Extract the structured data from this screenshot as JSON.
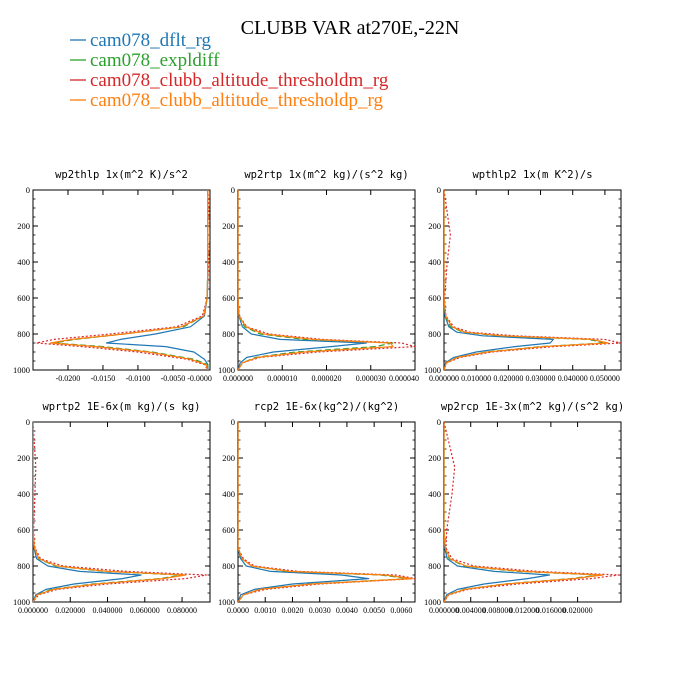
{
  "figure": {
    "title": "CLUBB VAR at270E,-22N",
    "legend": [
      {
        "name": "cam078_dflt_rg",
        "color": "#1f77b4",
        "dash": "solid"
      },
      {
        "name": "cam078_expldiff",
        "color": "#2ca02c",
        "dash": "dashed"
      },
      {
        "name": "cam078_clubb_altitude_thresholdm_rg",
        "color": "#d62728",
        "dash": "dotted"
      },
      {
        "name": "cam078_clubb_altitude_thresholdp_rg",
        "color": "#ff7f0e",
        "dash": "solid"
      }
    ]
  },
  "chart_data": [
    {
      "type": "line",
      "title": "wp2thlp  1x(m^2 K)/s^2",
      "xlim": [
        -0.025,
        0.0003
      ],
      "ylim": [
        1000,
        0
      ],
      "xticks": [
        -0.02,
        -0.015,
        -0.01,
        -0.005,
        0.0
      ],
      "xticklabels": [
        "-0.0200",
        "-0.0150",
        "-0.0100",
        "-0.0050",
        "-0.0000"
      ],
      "yticks": [
        0,
        200,
        400,
        600,
        800,
        1000
      ],
      "y": [
        0,
        250,
        400,
        600,
        700,
        760,
        800,
        830,
        850,
        870,
        900,
        940,
        970,
        1000
      ],
      "series": [
        {
          "name": "cam078_dflt_rg",
          "values": [
            0,
            0,
            0,
            -0.0001,
            -0.0005,
            -0.0025,
            -0.0075,
            -0.0125,
            -0.0145,
            -0.006,
            -0.002,
            -0.0005,
            0,
            0
          ]
        },
        {
          "name": "cam078_expldiff",
          "values": [
            0,
            0,
            0,
            -0.0001,
            -0.0006,
            -0.0035,
            -0.012,
            -0.019,
            -0.022,
            -0.015,
            -0.008,
            -0.002,
            0,
            0
          ]
        },
        {
          "name": "cam078_clubb_altitude_thresholdm_rg",
          "values": [
            0,
            0.0003,
            0.0001,
            -0.0001,
            -0.0008,
            -0.0045,
            -0.014,
            -0.022,
            -0.0245,
            -0.018,
            -0.01,
            -0.003,
            -0.0005,
            0
          ]
        },
        {
          "name": "cam078_clubb_altitude_thresholdp_rg",
          "values": [
            0,
            0,
            0,
            -0.0001,
            -0.0006,
            -0.0038,
            -0.012,
            -0.0195,
            -0.0225,
            -0.016,
            -0.0085,
            -0.0025,
            -0.0003,
            0
          ]
        }
      ]
    },
    {
      "type": "line",
      "title": "wp2rtp  1x(m^2 kg)/(s^2 kg)",
      "xlim": [
        0,
        4e-05
      ],
      "ylim": [
        1000,
        0
      ],
      "xticks": [
        0,
        1e-05,
        2e-05,
        3e-05,
        4e-05
      ],
      "xticklabels": [
        "0.000000",
        "0.000010",
        "0.000020",
        "0.000030",
        "0.000040"
      ],
      "yticks": [
        0,
        200,
        400,
        600,
        800,
        1000
      ],
      "y": [
        0,
        200,
        400,
        600,
        700,
        760,
        800,
        830,
        850,
        870,
        900,
        930,
        960,
        1000
      ],
      "series": [
        {
          "name": "cam078_dflt_rg",
          "values": [
            0,
            0,
            0,
            0,
            2e-07,
            1e-06,
            3e-06,
            9.5e-06,
            2.9e-05,
            2.1e-05,
            8e-06,
            2e-06,
            5e-07,
            0
          ]
        },
        {
          "name": "cam078_expldiff",
          "values": [
            0,
            0,
            0,
            0,
            2e-07,
            1.5e-06,
            5e-06,
            1.5e-05,
            3.5e-05,
            3.1e-05,
            1.3e-05,
            4e-06,
            1e-06,
            0
          ]
        },
        {
          "name": "cam078_clubb_altitude_thresholdm_rg",
          "values": [
            0,
            0,
            0,
            0,
            3e-07,
            2e-06,
            7e-06,
            1.9e-05,
            3.7e-05,
            4e-05,
            1.8e-05,
            5e-06,
            1e-06,
            0
          ]
        },
        {
          "name": "cam078_clubb_altitude_thresholdp_rg",
          "values": [
            0,
            0,
            0,
            0,
            2e-07,
            1.8e-06,
            5.8e-06,
            1.7e-05,
            3.45e-05,
            3.5e-05,
            1.5e-05,
            4.5e-06,
            1e-06,
            0
          ]
        }
      ]
    },
    {
      "type": "line",
      "title": "wpthlp2  1x(m K^2)/s",
      "xlim": [
        0,
        0.055
      ],
      "ylim": [
        1000,
        0
      ],
      "xticks": [
        0,
        0.01,
        0.02,
        0.03,
        0.04,
        0.05
      ],
      "xticklabels": [
        "0.000000",
        "0.010000",
        "0.020000",
        "0.030000",
        "0.040000",
        "0.050000"
      ],
      "yticks": [
        0,
        200,
        400,
        600,
        800,
        1000
      ],
      "y": [
        0,
        250,
        400,
        600,
        700,
        760,
        790,
        810,
        830,
        850,
        870,
        900,
        930,
        960,
        1000
      ],
      "series": [
        {
          "name": "cam078_dflt_rg",
          "values": [
            0,
            0,
            0,
            0,
            0.0003,
            0.0015,
            0.004,
            0.012,
            0.034,
            0.033,
            0.022,
            0.01,
            0.003,
            0.0005,
            0
          ]
        },
        {
          "name": "cam078_expldiff",
          "values": [
            0,
            0,
            0,
            0,
            0.0004,
            0.002,
            0.006,
            0.017,
            0.045,
            0.05,
            0.03,
            0.013,
            0.004,
            0.0007,
            0
          ]
        },
        {
          "name": "cam078_clubb_altitude_thresholdm_rg",
          "values": [
            0,
            0.002,
            0.001,
            0.0002,
            0.0006,
            0.003,
            0.008,
            0.022,
            0.05,
            0.055,
            0.034,
            0.015,
            0.005,
            0.0008,
            0
          ]
        },
        {
          "name": "cam078_clubb_altitude_thresholdp_rg",
          "values": [
            0,
            0,
            0,
            0,
            0.0005,
            0.0025,
            0.0065,
            0.018,
            0.046,
            0.051,
            0.031,
            0.0135,
            0.0042,
            0.0007,
            0
          ]
        }
      ]
    },
    {
      "type": "line",
      "title": "wprtp2  1E-6x(m kg)/(s kg)",
      "xlim": [
        0,
        0.095
      ],
      "ylim": [
        1000,
        0
      ],
      "xticks": [
        0,
        0.02,
        0.04,
        0.06,
        0.08
      ],
      "xticklabels": [
        "0.000000",
        "0.020000",
        "0.040000",
        "0.060000",
        "0.080000"
      ],
      "yticks": [
        0,
        200,
        400,
        600,
        800,
        1000
      ],
      "y": [
        0,
        250,
        400,
        600,
        700,
        760,
        800,
        830,
        850,
        870,
        900,
        930,
        960,
        1000
      ],
      "series": [
        {
          "name": "cam078_dflt_rg",
          "values": [
            0,
            0,
            0,
            0,
            0.0005,
            0.002,
            0.008,
            0.025,
            0.058,
            0.048,
            0.022,
            0.007,
            0.0015,
            0
          ]
        },
        {
          "name": "cam078_expldiff",
          "values": [
            0,
            0,
            0,
            0,
            0.0006,
            0.003,
            0.012,
            0.038,
            0.08,
            0.068,
            0.032,
            0.01,
            0.002,
            0
          ]
        },
        {
          "name": "cam078_clubb_altitude_thresholdm_rg",
          "values": [
            0,
            0.0015,
            0.001,
            0.0003,
            0.001,
            0.004,
            0.016,
            0.05,
            0.093,
            0.082,
            0.04,
            0.013,
            0.003,
            0
          ]
        },
        {
          "name": "cam078_clubb_altitude_thresholdp_rg",
          "values": [
            0,
            0,
            0,
            0,
            0.0007,
            0.0032,
            0.013,
            0.04,
            0.082,
            0.07,
            0.034,
            0.011,
            0.0022,
            0
          ]
        }
      ]
    },
    {
      "type": "line",
      "title": "rcp2  1E-6x(kg^2)/(kg^2)",
      "xlim": [
        0,
        0.0065
      ],
      "ylim": [
        1000,
        0
      ],
      "xticks": [
        0,
        0.001,
        0.002,
        0.003,
        0.004,
        0.005,
        0.006
      ],
      "xticklabels": [
        "0.0000",
        "0.0010",
        "0.0020",
        "0.0030",
        "0.0040",
        "0.0050",
        "0.0060"
      ],
      "yticks": [
        0,
        200,
        400,
        600,
        800,
        1000
      ],
      "y": [
        0,
        300,
        600,
        700,
        760,
        800,
        830,
        850,
        870,
        900,
        930,
        960,
        1000
      ],
      "series": [
        {
          "name": "cam078_dflt_rg",
          "values": [
            0,
            0,
            0,
            0,
            0.0001,
            0.0003,
            0.0012,
            0.0038,
            0.0048,
            0.002,
            0.0006,
            0.0001,
            0
          ]
        },
        {
          "name": "cam078_expldiff",
          "values": [
            0,
            0,
            0,
            0,
            0.00015,
            0.0005,
            0.0018,
            0.0052,
            0.0063,
            0.0026,
            0.0008,
            0.0002,
            0
          ]
        },
        {
          "name": "cam078_clubb_altitude_thresholdm_rg",
          "values": [
            0,
            0,
            0,
            0,
            0.0002,
            0.0006,
            0.0022,
            0.0058,
            0.0065,
            0.003,
            0.001,
            0.0002,
            0
          ]
        },
        {
          "name": "cam078_clubb_altitude_thresholdp_rg",
          "values": [
            0,
            0,
            0,
            0,
            0.00015,
            0.0005,
            0.0019,
            0.0054,
            0.0064,
            0.0027,
            0.0008,
            0.0002,
            0
          ]
        }
      ]
    },
    {
      "type": "line",
      "title": "wp2rcp  1E-3x(m^2 kg)/(s^2 kg)",
      "xlim": [
        0,
        0.0265
      ],
      "ylim": [
        1000,
        0
      ],
      "xticks": [
        0,
        0.004,
        0.008,
        0.012,
        0.016,
        0.02
      ],
      "xticklabels": [
        "0.000000",
        "0.004000",
        "0.008000",
        "0.012000",
        "0.016000",
        "0.020000"
      ],
      "yticks": [
        0,
        200,
        400,
        600,
        800,
        1000
      ],
      "y": [
        0,
        250,
        400,
        600,
        700,
        760,
        800,
        830,
        850,
        870,
        900,
        930,
        960,
        1000
      ],
      "series": [
        {
          "name": "cam078_dflt_rg",
          "values": [
            0,
            0,
            0,
            0,
            0.0001,
            0.0005,
            0.002,
            0.0075,
            0.0158,
            0.0125,
            0.006,
            0.002,
            0.0004,
            0
          ]
        },
        {
          "name": "cam078_expldiff",
          "values": [
            0,
            0,
            0,
            0,
            0.00015,
            0.0008,
            0.003,
            0.011,
            0.0232,
            0.019,
            0.009,
            0.003,
            0.0006,
            0
          ]
        },
        {
          "name": "cam078_clubb_altitude_thresholdm_rg",
          "values": [
            0,
            0.0016,
            0.0012,
            0.0004,
            0.0003,
            0.0012,
            0.0045,
            0.014,
            0.0262,
            0.022,
            0.011,
            0.0036,
            0.0007,
            0
          ]
        },
        {
          "name": "cam078_clubb_altitude_thresholdp_rg",
          "values": [
            0,
            0,
            0,
            0,
            0.00018,
            0.0009,
            0.0033,
            0.0118,
            0.0238,
            0.0195,
            0.0093,
            0.0031,
            0.0006,
            0
          ]
        }
      ]
    }
  ]
}
